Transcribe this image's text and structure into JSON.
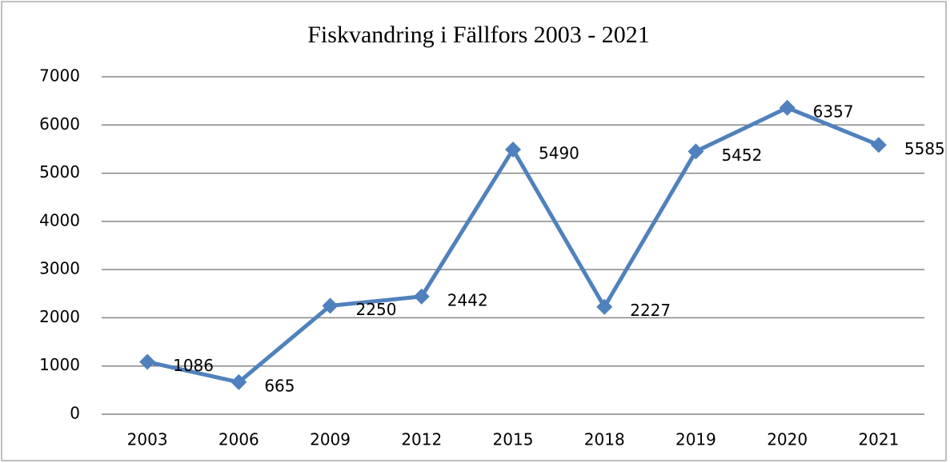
{
  "chart_data": {
    "type": "line",
    "title": "Fiskvandring i Fällfors 2003  - 2021",
    "categories": [
      "2003",
      "2006",
      "2009",
      "2012",
      "2015",
      "2018",
      "2019",
      "2020",
      "2021"
    ],
    "series": [
      {
        "color": "#4f81bd",
        "values": [
          1086,
          665,
          2250,
          2442,
          5490,
          2227,
          5452,
          6357,
          5585
        ]
      }
    ],
    "ylim": [
      0,
      7000
    ],
    "yticks": [
      0,
      1000,
      2000,
      3000,
      4000,
      5000,
      6000,
      7000
    ],
    "grid": true
  }
}
